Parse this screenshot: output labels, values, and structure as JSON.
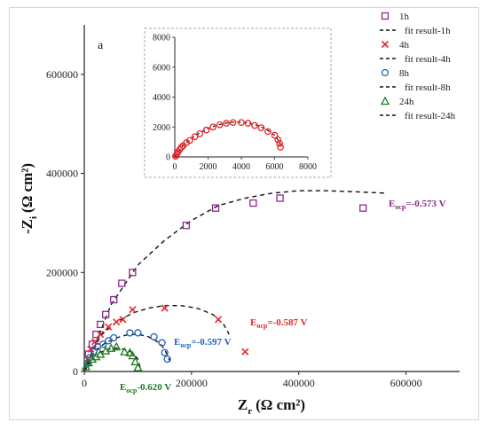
{
  "panel_label": "a",
  "chart_data": [
    {
      "type": "scatter",
      "xlabel_main": "Z",
      "xlabel_sub": "r",
      "xlabel_unit": "(Ω cm²)",
      "ylabel_main": "-Z",
      "ylabel_sub": "i",
      "ylabel_unit": "(Ω cm²)",
      "xlim": [
        0,
        700000
      ],
      "ylim": [
        0,
        700000
      ],
      "xticks": [
        0,
        200000,
        400000,
        600000
      ],
      "yticks": [
        0,
        200000,
        400000,
        600000
      ],
      "xtick_labels": [
        "0",
        "200000",
        "400000",
        "600000"
      ],
      "ytick_labels": [
        "0",
        "200000",
        "400000",
        "600000"
      ],
      "legend": "top-right",
      "series": [
        {
          "name": "1h",
          "marker": "square",
          "color": "#8b2a8b",
          "x": [
            8000,
            15000,
            22000,
            30000,
            40000,
            55000,
            70000,
            90000,
            190000,
            245000,
            315000,
            365000,
            520000
          ],
          "y": [
            35000,
            55000,
            75000,
            95000,
            115000,
            145000,
            178000,
            200000,
            295000,
            330000,
            340000,
            350000,
            330000
          ]
        },
        {
          "name": "4h",
          "marker": "x",
          "color": "#e8262a",
          "x": [
            6000,
            12000,
            20000,
            30000,
            45000,
            60000,
            72000,
            90000,
            150000,
            250000,
            300000
          ],
          "y": [
            25000,
            45000,
            60000,
            75000,
            90000,
            100000,
            105000,
            125000,
            128000,
            105000,
            40000
          ]
        },
        {
          "name": "8h",
          "marker": "circle",
          "color": "#1f5fbf",
          "x": [
            5000,
            10000,
            18000,
            25000,
            35000,
            45000,
            55000,
            85000,
            100000,
            130000,
            145000,
            150000,
            155000
          ],
          "y": [
            15000,
            28000,
            40000,
            50000,
            55000,
            62000,
            68000,
            78000,
            78000,
            70000,
            58000,
            38000,
            25000
          ]
        },
        {
          "name": "24h",
          "marker": "triangle",
          "color": "#1e7a1e",
          "x": [
            3000,
            8000,
            15000,
            22000,
            30000,
            40000,
            50000,
            60000,
            75000,
            85000,
            90000,
            95000,
            100000
          ],
          "y": [
            10000,
            18000,
            25000,
            30000,
            35000,
            42000,
            47000,
            50000,
            40000,
            38000,
            32000,
            20000,
            8000
          ]
        }
      ],
      "fits": [
        {
          "name": "fit result-1h",
          "x": [
            0,
            50000,
            100000,
            150000,
            200000,
            250000,
            300000,
            350000,
            400000,
            450000,
            500000,
            565000
          ],
          "y": [
            0,
            135000,
            215000,
            265000,
            305000,
            335000,
            350000,
            360000,
            365000,
            365000,
            363000,
            360000
          ]
        },
        {
          "name": "fit result-4h",
          "x": [
            0,
            30000,
            60000,
            90000,
            120000,
            150000,
            180000,
            210000,
            240000,
            260000,
            270000
          ],
          "y": [
            0,
            72000,
            100000,
            118000,
            128000,
            133000,
            133000,
            128000,
            115000,
            95000,
            75000
          ]
        },
        {
          "name": "fit result-8h",
          "x": [
            0,
            20000,
            40000,
            60000,
            80000,
            100000,
            120000,
            140000,
            150000,
            160000
          ],
          "y": [
            0,
            42000,
            58000,
            68000,
            74000,
            75000,
            70000,
            58000,
            45000,
            20000
          ]
        },
        {
          "name": "fit result-24h",
          "x": [
            0,
            15000,
            30000,
            45000,
            60000,
            75000,
            90000,
            100000,
            105000
          ],
          "y": [
            0,
            28000,
            39000,
            45000,
            47000,
            45000,
            38000,
            25000,
            5000
          ]
        }
      ],
      "annotations": [
        {
          "main": "E",
          "sub": "ocp",
          "text": "=-0.573 V",
          "color": "#8b2a8b"
        },
        {
          "main": "E",
          "sub": "ocp",
          "text": "=-0.587 V",
          "color": "#e8262a"
        },
        {
          "main": "E",
          "sub": "ocp",
          "text": "=-0.597 V",
          "color": "#1f5fbf"
        },
        {
          "main": "E",
          "sub": "ocp",
          "text": "-0.620 V",
          "color": "#1e7a1e"
        }
      ]
    },
    {
      "type": "scatter",
      "title": "",
      "xlim": [
        0,
        8000
      ],
      "ylim": [
        0,
        8000
      ],
      "xticks": [
        0,
        2000,
        4000,
        6000,
        8000
      ],
      "yticks": [
        0,
        2000,
        4000,
        6000,
        8000
      ],
      "xtick_labels": [
        "0",
        "2000",
        "4000",
        "6000",
        "8000"
      ],
      "ytick_labels": [
        "0",
        "2000",
        "4000",
        "6000",
        "8000"
      ],
      "series": [
        {
          "marker": "circle",
          "color": "#e8262a",
          "x": [
            50,
            100,
            150,
            200,
            300,
            400,
            500,
            700,
            900,
            1200,
            1500,
            1900,
            2300,
            2700,
            3100,
            3500,
            4000,
            4400,
            4800,
            5200,
            5600,
            6000,
            6200,
            6300,
            6350
          ],
          "y": [
            50,
            150,
            250,
            350,
            500,
            650,
            750,
            950,
            1100,
            1350,
            1550,
            1800,
            2000,
            2150,
            2250,
            2300,
            2300,
            2250,
            2100,
            1950,
            1700,
            1450,
            1150,
            900,
            650
          ]
        }
      ],
      "fits": [
        {
          "x": [
            0,
            500,
            1000,
            1500,
            2000,
            2500,
            3000,
            3500,
            4000,
            4500,
            5000,
            5500,
            6000,
            6300,
            6450
          ],
          "y": [
            0,
            800,
            1250,
            1600,
            1900,
            2100,
            2250,
            2320,
            2330,
            2250,
            2100,
            1850,
            1450,
            1000,
            600
          ]
        }
      ]
    }
  ]
}
